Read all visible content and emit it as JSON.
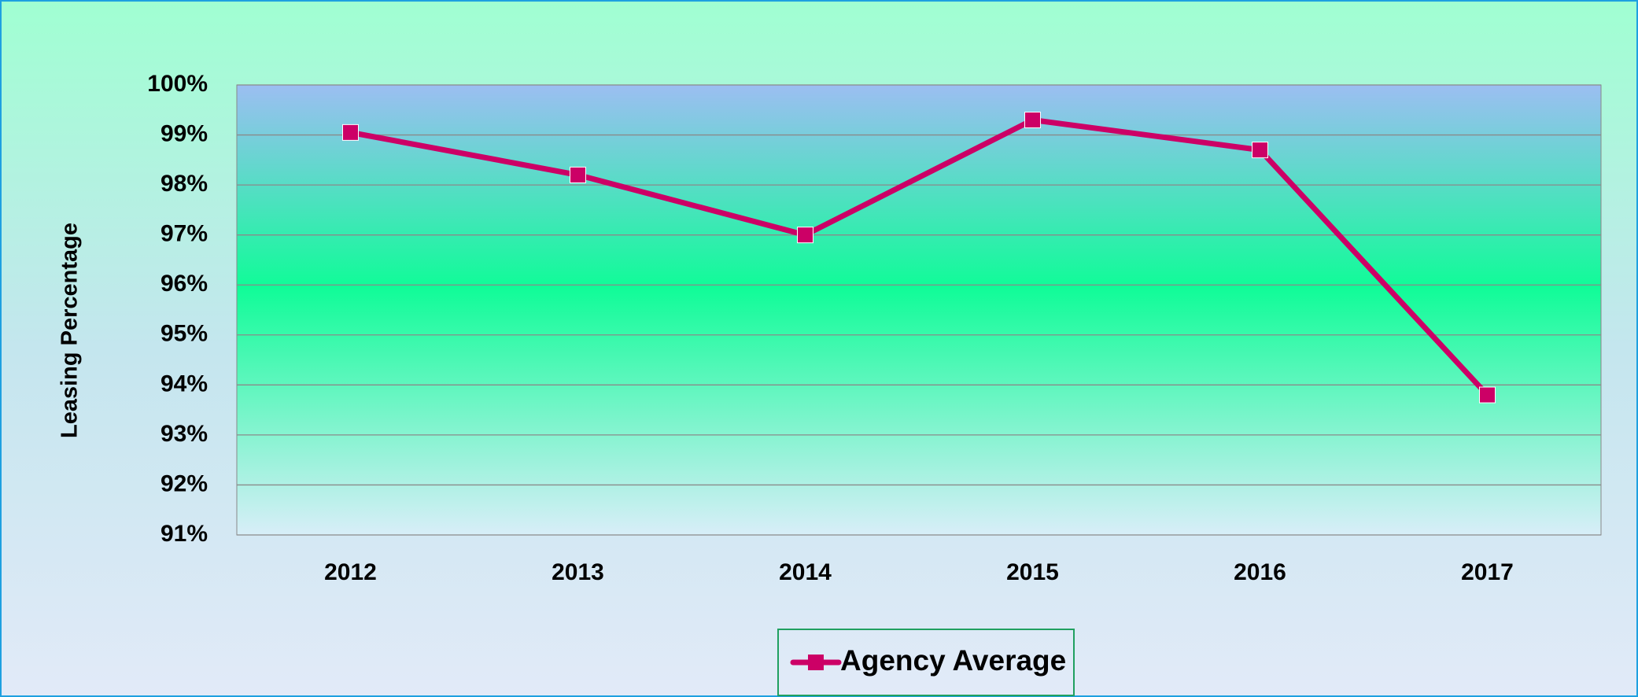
{
  "chart_data": {
    "type": "line",
    "ylabel": "Leasing Percentage",
    "categories": [
      "2012",
      "2013",
      "2014",
      "2015",
      "2016",
      "2017"
    ],
    "series": [
      {
        "name": "Agency Average",
        "color": "#cc0066",
        "values": [
          99.05,
          98.2,
          97.0,
          99.3,
          98.7,
          93.8
        ]
      }
    ],
    "ylim": [
      91,
      100
    ],
    "yticks": [
      {
        "value": 91,
        "label": "91%"
      },
      {
        "value": 92,
        "label": "92%"
      },
      {
        "value": 93,
        "label": "93%"
      },
      {
        "value": 94,
        "label": "94%"
      },
      {
        "value": 95,
        "label": "95%"
      },
      {
        "value": 96,
        "label": "96%"
      },
      {
        "value": 97,
        "label": "97%"
      },
      {
        "value": 98,
        "label": "98%"
      },
      {
        "value": 99,
        "label": "99%"
      },
      {
        "value": 100,
        "label": "100%"
      }
    ],
    "grid": true,
    "legend": "bottom"
  }
}
